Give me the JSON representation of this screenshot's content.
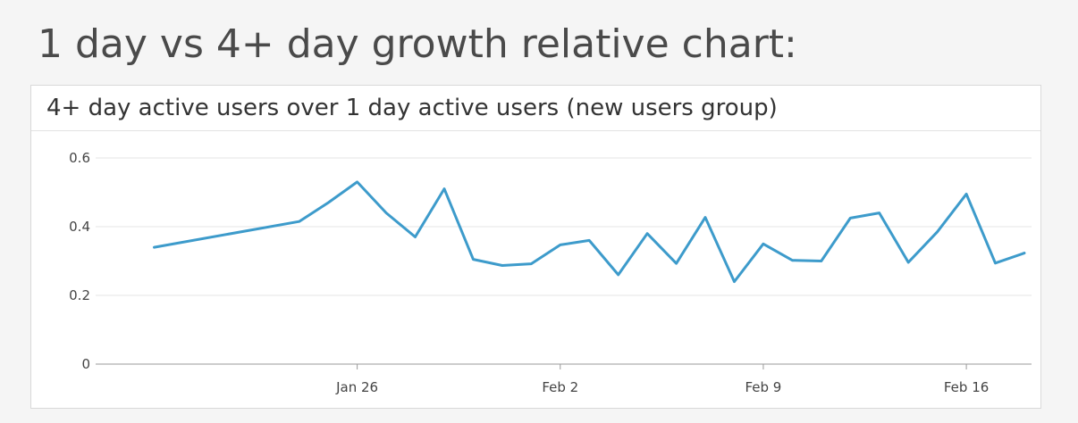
{
  "page": {
    "title": "1 day vs 4+ day growth relative chart:"
  },
  "panel": {
    "title": "4+ day active users over 1 day active users (new users group)"
  },
  "colors": {
    "line": "#3d9bcb",
    "grid": "#e6e6e6",
    "axis": "#999999"
  },
  "chart_data": {
    "type": "line",
    "title": "4+ day active users over 1 day active users (new users group)",
    "xlabel": "",
    "ylabel": "",
    "ylim": [
      0,
      0.6
    ],
    "yticks": [
      0,
      0.2,
      0.4,
      0.6
    ],
    "ytick_labels": [
      "0",
      "0.2",
      "0.4",
      "0.6"
    ],
    "xlim": [
      "2025-01-18",
      "2025-02-18"
    ],
    "xticks": [
      "2025-01-26",
      "2025-02-02",
      "2025-02-09",
      "2025-02-16"
    ],
    "xtick_labels": [
      "Jan 26",
      "Feb 2",
      "Feb 9",
      "Feb 16"
    ],
    "grid": "horizontal",
    "legend": "none",
    "series": [
      {
        "color": "#3d9bcb",
        "x": [
          "2025-01-19",
          "2025-01-24",
          "2025-01-25",
          "2025-01-26",
          "2025-01-27",
          "2025-01-28",
          "2025-01-29",
          "2025-01-30",
          "2025-01-31",
          "2025-02-01",
          "2025-02-02",
          "2025-02-03",
          "2025-02-04",
          "2025-02-05",
          "2025-02-06",
          "2025-02-07",
          "2025-02-08",
          "2025-02-09",
          "2025-02-10",
          "2025-02-11",
          "2025-02-12",
          "2025-02-13",
          "2025-02-14",
          "2025-02-15",
          "2025-02-16",
          "2025-02-17",
          "2025-02-18"
        ],
        "y": [
          0.34,
          0.415,
          0.47,
          0.53,
          0.44,
          0.37,
          0.51,
          0.305,
          0.287,
          0.292,
          0.347,
          0.36,
          0.26,
          0.38,
          0.293,
          0.427,
          0.24,
          0.35,
          0.302,
          0.3,
          0.425,
          0.44,
          0.296,
          0.385,
          0.495,
          0.294,
          0.323
        ]
      }
    ]
  }
}
